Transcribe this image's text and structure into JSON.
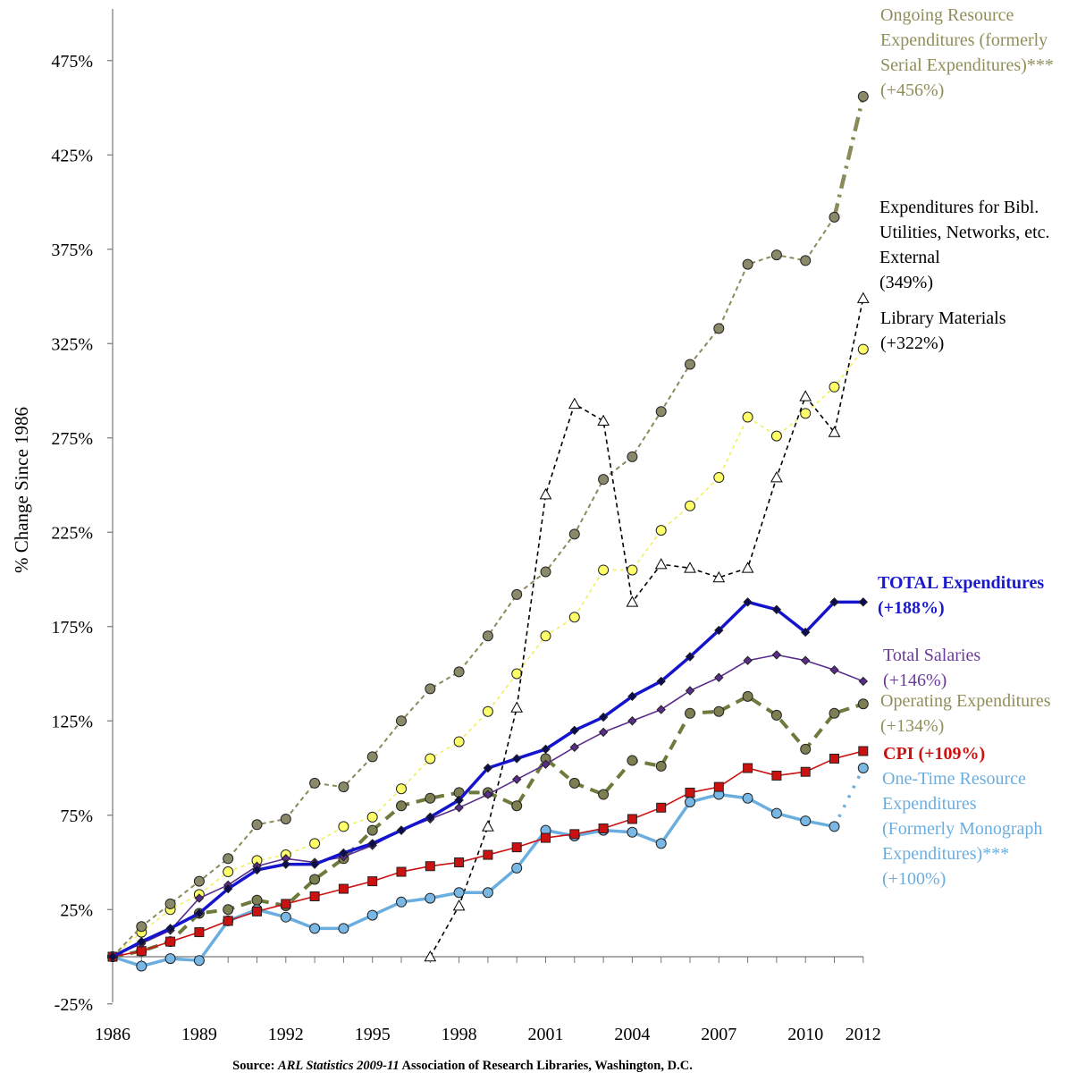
{
  "chart_data": {
    "type": "line",
    "ylabel": "% Change Since 1986",
    "ylim": [
      -25,
      490
    ],
    "yticks": [
      -25,
      25,
      75,
      125,
      175,
      225,
      275,
      325,
      375,
      425,
      475
    ],
    "ytick_labels": [
      "-25%",
      "25%",
      "75%",
      "125%",
      "175%",
      "225%",
      "275%",
      "325%",
      "375%",
      "425%",
      "475%"
    ],
    "xlim": [
      1986,
      2012
    ],
    "xticks": [
      1986,
      1989,
      1992,
      1995,
      1998,
      2001,
      2004,
      2007,
      2010,
      2012
    ],
    "xtick_labels": [
      "1986",
      "1989",
      "1992",
      "1995",
      "1998",
      "2001",
      "2004",
      "2007",
      "2010",
      "2012"
    ],
    "source": {
      "prefix": "Source: ",
      "title": "ARL Statistics 2009-11",
      "suffix": " Association of Research Libraries, Washington, D.C."
    },
    "series": [
      {
        "id": "ongoing",
        "name": "Ongoing Resource Expenditures (formerly Serial Expenditures)***",
        "label_lines": [
          "Ongoing Resource",
          "Expenditures (formerly",
          "Serial Expenditures)***",
          "(+456%)"
        ],
        "color": "#8a8a5a",
        "label_color": "#8f8f5a",
        "marker": "circle",
        "marker_fill": "#8a8a6a",
        "x": [
          1986,
          1987,
          1988,
          1989,
          1990,
          1991,
          1992,
          1993,
          1994,
          1995,
          1996,
          1997,
          1998,
          1999,
          2000,
          2001,
          2002,
          2003,
          2004,
          2005,
          2006,
          2007,
          2008,
          2009,
          2010,
          2011,
          2012
        ],
        "values": [
          0,
          16,
          28,
          40,
          52,
          70,
          73,
          92,
          90,
          106,
          125,
          142,
          151,
          170,
          192,
          204,
          224,
          253,
          265,
          289,
          314,
          333,
          367,
          372,
          369,
          392,
          456
        ]
      },
      {
        "id": "bibl",
        "name": "Expenditures for Bibl. Utilities, Networks, etc. External",
        "label_lines": [
          "Expenditures for Bibl.",
          "Utilities, Networks, etc.",
          "External",
          "(349%)"
        ],
        "color": "#000000",
        "label_color": "#000000",
        "marker": "triangle",
        "marker_fill": "#ffffff",
        "x": [
          1997,
          1998,
          1999,
          2000,
          2001,
          2002,
          2003,
          2004,
          2005,
          2006,
          2007,
          2008,
          2009,
          2010,
          2011,
          2012
        ],
        "values": [
          0,
          27,
          69,
          132,
          245,
          293,
          284,
          188,
          208,
          206,
          201,
          206,
          254,
          297,
          278,
          349
        ]
      },
      {
        "id": "materials",
        "name": "Library Materials",
        "label_lines": [
          "Library Materials",
          "(+322%)"
        ],
        "color": "#f2ef5a",
        "label_color": "#000000",
        "marker": "circle",
        "marker_fill": "#ffff6a",
        "x": [
          1986,
          1987,
          1988,
          1989,
          1990,
          1991,
          1992,
          1993,
          1994,
          1995,
          1996,
          1997,
          1998,
          1999,
          2000,
          2001,
          2002,
          2003,
          2004,
          2005,
          2006,
          2007,
          2008,
          2009,
          2010,
          2011,
          2012
        ],
        "values": [
          0,
          13,
          25,
          33,
          45,
          51,
          54,
          60,
          69,
          74,
          89,
          105,
          114,
          130,
          150,
          170,
          180,
          205,
          205,
          226,
          239,
          254,
          286,
          276,
          288,
          302,
          322
        ]
      },
      {
        "id": "total",
        "name": "TOTAL Expenditures",
        "label_lines": [
          "TOTAL Expenditures",
          "(+188%)"
        ],
        "color": "#1414cc",
        "label_color": "#1a1acc",
        "marker": "diamond",
        "marker_fill": "#0a0a55",
        "x": [
          1986,
          1987,
          1988,
          1989,
          1990,
          1991,
          1992,
          1993,
          1994,
          1995,
          1996,
          1997,
          1998,
          1999,
          2000,
          2001,
          2002,
          2003,
          2004,
          2005,
          2006,
          2007,
          2008,
          2009,
          2010,
          2011,
          2012
        ],
        "values": [
          0,
          8,
          15,
          23,
          36,
          46,
          49,
          49,
          55,
          60,
          67,
          74,
          83,
          100,
          105,
          110,
          120,
          127,
          138,
          146,
          159,
          173,
          188,
          184,
          172,
          188,
          188
        ]
      },
      {
        "id": "salaries",
        "name": "Total Salaries",
        "label_lines": [
          "Total Salaries",
          "(+146%)"
        ],
        "color": "#5a2d8c",
        "label_color": "#6a3a9a",
        "marker": "diamond",
        "marker_fill": "#5a2d8c",
        "x": [
          1986,
          1987,
          1988,
          1989,
          1990,
          1991,
          1992,
          1993,
          1994,
          1995,
          1996,
          1997,
          1998,
          1999,
          2000,
          2001,
          2002,
          2003,
          2004,
          2005,
          2006,
          2007,
          2008,
          2009,
          2010,
          2011,
          2012
        ],
        "values": [
          0,
          7,
          14,
          31,
          38,
          48,
          52,
          50,
          53,
          59,
          67,
          73,
          79,
          86,
          94,
          102,
          111,
          119,
          125,
          131,
          141,
          148,
          157,
          160,
          157,
          152,
          146
        ]
      },
      {
        "id": "operating",
        "name": "Operating Expenditures",
        "label_lines": [
          "Operating Expenditures",
          "(+134%)"
        ],
        "color": "#6e7a3c",
        "label_color": "#8f8f5a",
        "marker": "circle",
        "marker_fill": "#7d7f52",
        "x": [
          1986,
          1987,
          1988,
          1989,
          1990,
          1991,
          1992,
          1993,
          1994,
          1995,
          1996,
          1997,
          1998,
          1999,
          2000,
          2001,
          2002,
          2003,
          2004,
          2005,
          2006,
          2007,
          2008,
          2009,
          2010,
          2011,
          2012
        ],
        "values": [
          0,
          3,
          8,
          23,
          25,
          30,
          27,
          41,
          52,
          67,
          80,
          84,
          87,
          87,
          80,
          105,
          92,
          86,
          104,
          101,
          129,
          130,
          138,
          128,
          110,
          129,
          134
        ]
      },
      {
        "id": "cpi",
        "name": "CPI",
        "label_lines": [
          "CPI (+109%)"
        ],
        "color": "#cc1111",
        "label_color": "#cc1111",
        "marker": "square",
        "marker_fill": "#cc1111",
        "x": [
          1986,
          1987,
          1988,
          1989,
          1990,
          1991,
          1992,
          1993,
          1994,
          1995,
          1996,
          1997,
          1998,
          1999,
          2000,
          2001,
          2002,
          2003,
          2004,
          2005,
          2006,
          2007,
          2008,
          2009,
          2010,
          2011,
          2012
        ],
        "values": [
          0,
          3,
          8,
          13,
          19,
          24,
          28,
          32,
          36,
          40,
          45,
          48,
          50,
          54,
          58,
          63,
          65,
          68,
          73,
          79,
          87,
          90,
          100,
          96,
          98,
          105,
          109
        ]
      },
      {
        "id": "onetime",
        "name": "One-Time Resource Expenditures (Formerly Monograph Expenditures)***",
        "label_lines": [
          "One-Time Resource",
          "Expenditures",
          "(Formerly Monograph",
          "Expenditures)***",
          "(+100%)"
        ],
        "color": "#6aaee0",
        "label_color": "#6aaee0",
        "marker": "circle",
        "marker_fill": "#79b8e4",
        "x": [
          1986,
          1987,
          1988,
          1989,
          1990,
          1991,
          1992,
          1993,
          1994,
          1995,
          1996,
          1997,
          1998,
          1999,
          2000,
          2001,
          2002,
          2003,
          2004,
          2005,
          2006,
          2007,
          2008,
          2009,
          2010,
          2011,
          2012
        ],
        "values": [
          0,
          -5,
          -1,
          -2,
          19,
          25,
          21,
          15,
          15,
          22,
          29,
          31,
          34,
          34,
          47,
          67,
          64,
          67,
          66,
          60,
          82,
          86,
          84,
          76,
          72,
          69,
          100
        ]
      }
    ]
  }
}
